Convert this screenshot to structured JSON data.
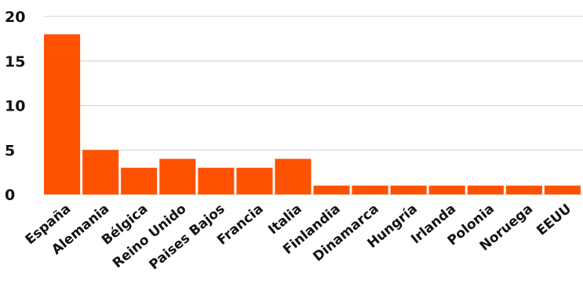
{
  "chart_data": {
    "type": "bar",
    "categories": [
      "España",
      "Alemania",
      "Bélgica",
      "Reino Unido",
      "Paises Bajos",
      "Francia",
      "Italia",
      "Finlandia",
      "Dinamarca",
      "Hungría",
      "Irlanda",
      "Polonia",
      "Noruega",
      "EEUU"
    ],
    "values": [
      18,
      5,
      3,
      4,
      3,
      3,
      4,
      1,
      1,
      1,
      1,
      1,
      1,
      1
    ],
    "ylim": [
      0,
      20
    ],
    "yticks": [
      0,
      5,
      10,
      15,
      20
    ],
    "grid": true,
    "legend": "none",
    "bar_color": "#ff5200",
    "title": "",
    "xlabel": "",
    "ylabel": ""
  }
}
